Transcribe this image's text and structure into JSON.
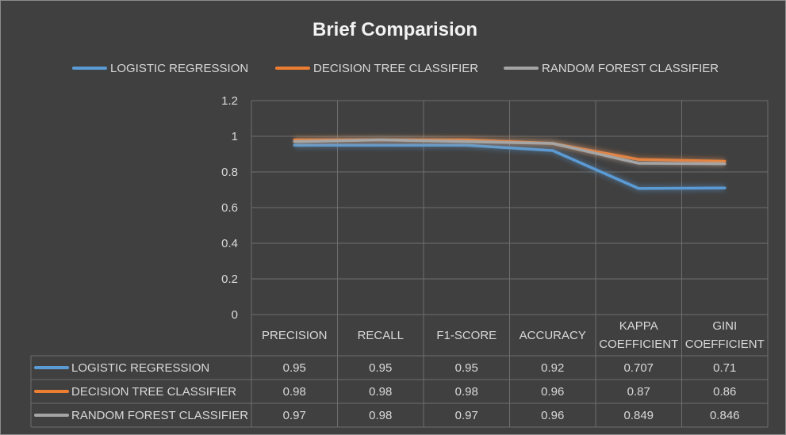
{
  "chart_data": {
    "type": "line",
    "title": "Brief Comparision",
    "categories": [
      "PRECISION",
      "RECALL",
      "F1-SCORE",
      "ACCURACY",
      "KAPPA COEFFICIENT",
      "GINI COEFFICIENT"
    ],
    "category_lines": [
      [
        "PRECISION"
      ],
      [
        "RECALL"
      ],
      [
        "F1-SCORE"
      ],
      [
        "ACCURACY"
      ],
      [
        "KAPPA",
        "COEFFICIENT"
      ],
      [
        "GINI",
        "COEFFICIENT"
      ]
    ],
    "series": [
      {
        "name": "LOGISTIC REGRESSION",
        "color": "#5b9bd5",
        "values": [
          0.95,
          0.95,
          0.95,
          0.92,
          0.707,
          0.71
        ],
        "labels": [
          "0.95",
          "0.95",
          "0.95",
          "0.92",
          "0.707",
          "0.71"
        ]
      },
      {
        "name": "DECISION TREE CLASSIFIER",
        "color": "#ed7d31",
        "values": [
          0.98,
          0.98,
          0.98,
          0.96,
          0.87,
          0.86
        ],
        "labels": [
          "0.98",
          "0.98",
          "0.98",
          "0.96",
          "0.87",
          "0.86"
        ]
      },
      {
        "name": "RANDOM FOREST CLASSIFIER",
        "color": "#a5a5a5",
        "values": [
          0.97,
          0.98,
          0.97,
          0.96,
          0.849,
          0.846
        ],
        "labels": [
          "0.97",
          "0.98",
          "0.97",
          "0.96",
          "0.849",
          "0.846"
        ]
      }
    ],
    "ylim": [
      0,
      1.2
    ],
    "yticks": [
      "0",
      "0.2",
      "0.4",
      "0.6",
      "0.8",
      "1",
      "1.2"
    ],
    "grid": true,
    "legend_position": "top",
    "data_table": true
  }
}
